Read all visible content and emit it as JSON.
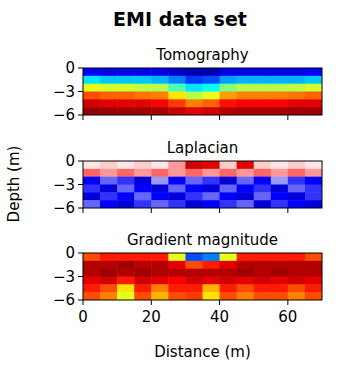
{
  "title": "EMI data set",
  "x_label": "Distance (m)",
  "y_label": "Depth (m)",
  "chart_data": [
    {
      "type": "heatmap",
      "title": "Tomography",
      "color": "jet",
      "clim": [
        0,
        1
      ],
      "xlim": [
        0,
        70
      ],
      "ylim": [
        -6,
        0
      ],
      "xticks": [
        0,
        20,
        40,
        60
      ],
      "yticks": [
        0,
        {
          "value": -3,
          "label": "−3"
        },
        {
          "value": -6,
          "label": "−6"
        }
      ],
      "tick_labels": "y",
      "x": [
        2.5,
        7.5,
        12.5,
        17.5,
        22.5,
        27.5,
        32.5,
        37.5,
        42.5,
        47.5,
        52.5,
        57.5,
        62.5,
        67.5
      ],
      "y": [
        -0.5,
        -1.5,
        -2.5,
        -3.5,
        -4.5,
        -5.5
      ],
      "cells": [
        [
          0.12,
          0.1,
          0.1,
          0.1,
          0.1,
          0.08,
          0.05,
          0.05,
          0.1,
          0.1,
          0.1,
          0.1,
          0.1,
          0.12
        ],
        [
          0.35,
          0.32,
          0.32,
          0.32,
          0.3,
          0.25,
          0.18,
          0.2,
          0.28,
          0.3,
          0.3,
          0.3,
          0.3,
          0.32
        ],
        [
          0.6,
          0.58,
          0.58,
          0.56,
          0.55,
          0.45,
          0.35,
          0.38,
          0.5,
          0.55,
          0.55,
          0.55,
          0.56,
          0.58
        ],
        [
          0.8,
          0.78,
          0.78,
          0.76,
          0.75,
          0.65,
          0.55,
          0.6,
          0.72,
          0.75,
          0.75,
          0.75,
          0.76,
          0.78
        ],
        [
          0.92,
          0.9,
          0.9,
          0.9,
          0.88,
          0.82,
          0.75,
          0.78,
          0.86,
          0.88,
          0.88,
          0.88,
          0.9,
          0.9
        ],
        [
          0.98,
          0.97,
          0.97,
          0.97,
          0.96,
          0.93,
          0.9,
          0.92,
          0.95,
          0.96,
          0.96,
          0.96,
          0.97,
          0.97
        ]
      ]
    },
    {
      "type": "heatmap",
      "title": "Laplacian",
      "color": "seismic",
      "clim": [
        -1,
        1
      ],
      "xlim": [
        0,
        70
      ],
      "ylim": [
        -6,
        0
      ],
      "xticks": [
        0,
        20,
        40,
        60
      ],
      "yticks": [
        0,
        {
          "value": -3,
          "label": "−3"
        },
        {
          "value": -6,
          "label": "−6"
        }
      ],
      "tick_labels": "y",
      "x": [
        2.5,
        7.5,
        12.5,
        17.5,
        22.5,
        27.5,
        32.5,
        37.5,
        42.5,
        47.5,
        52.5,
        57.5,
        62.5,
        67.5
      ],
      "y": [
        -0.5,
        -1.5,
        -2.5,
        -3.5,
        -4.5,
        -5.5
      ],
      "cells": [
        [
          0.05,
          0.1,
          0.05,
          0.1,
          0.05,
          0.2,
          0.7,
          0.6,
          0.1,
          0.6,
          0.1,
          0.05,
          0.1,
          0.05
        ],
        [
          0.3,
          0.2,
          0.3,
          0.2,
          0.3,
          0.2,
          0.3,
          0.2,
          0.3,
          0.2,
          0.3,
          0.2,
          0.3,
          0.2
        ],
        [
          -0.5,
          -0.3,
          -0.4,
          -0.6,
          -0.2,
          -0.5,
          -0.3,
          -0.4,
          -0.6,
          -0.3,
          -0.5,
          -0.2,
          -0.4,
          -0.5
        ],
        [
          -0.4,
          -0.6,
          -0.3,
          -0.5,
          -0.6,
          -0.3,
          -0.5,
          -0.6,
          -0.3,
          -0.5,
          -0.4,
          -0.6,
          -0.3,
          -0.4
        ],
        [
          -0.6,
          -0.4,
          -0.5,
          -0.3,
          -0.5,
          -0.6,
          -0.4,
          -0.3,
          -0.5,
          -0.6,
          -0.3,
          -0.5,
          -0.6,
          -0.4
        ],
        [
          -0.3,
          -0.5,
          -0.6,
          -0.4,
          -0.3,
          -0.4,
          -0.6,
          -0.5,
          -0.4,
          -0.3,
          -0.6,
          -0.4,
          -0.5,
          -0.6
        ]
      ]
    },
    {
      "type": "heatmap",
      "title": "Gradient magnitude",
      "color": "jet",
      "clim": [
        0,
        1
      ],
      "xlim": [
        0,
        70
      ],
      "ylim": [
        -6,
        0
      ],
      "xticks": [
        0,
        20,
        40,
        60
      ],
      "yticks": [
        0,
        {
          "value": -3,
          "label": "−3"
        },
        {
          "value": -6,
          "label": "−6"
        }
      ],
      "x": [
        2.5,
        7.5,
        12.5,
        17.5,
        22.5,
        27.5,
        32.5,
        37.5,
        42.5,
        47.5,
        52.5,
        57.5,
        62.5,
        67.5
      ],
      "y": [
        -0.5,
        -1.5,
        -2.5,
        -3.5,
        -4.5,
        -5.5
      ],
      "cells": [
        [
          0.8,
          0.85,
          0.85,
          0.85,
          0.85,
          0.6,
          0.2,
          0.25,
          0.6,
          0.85,
          0.85,
          0.85,
          0.85,
          0.8
        ],
        [
          0.95,
          0.95,
          0.97,
          0.95,
          0.95,
          0.9,
          0.8,
          0.85,
          0.9,
          0.95,
          0.95,
          0.95,
          0.95,
          0.95
        ],
        [
          0.95,
          0.97,
          0.95,
          0.97,
          0.95,
          0.95,
          0.95,
          0.95,
          0.95,
          0.97,
          0.95,
          0.97,
          0.95,
          0.95
        ],
        [
          0.9,
          0.92,
          0.85,
          0.92,
          0.9,
          0.88,
          0.92,
          0.9,
          0.92,
          0.9,
          0.92,
          0.9,
          0.92,
          0.9
        ],
        [
          0.85,
          0.8,
          0.65,
          0.85,
          0.75,
          0.85,
          0.85,
          0.7,
          0.85,
          0.8,
          0.85,
          0.85,
          0.8,
          0.85
        ],
        [
          0.8,
          0.75,
          0.6,
          0.8,
          0.7,
          0.8,
          0.82,
          0.65,
          0.8,
          0.75,
          0.8,
          0.8,
          0.75,
          0.8
        ]
      ]
    }
  ]
}
